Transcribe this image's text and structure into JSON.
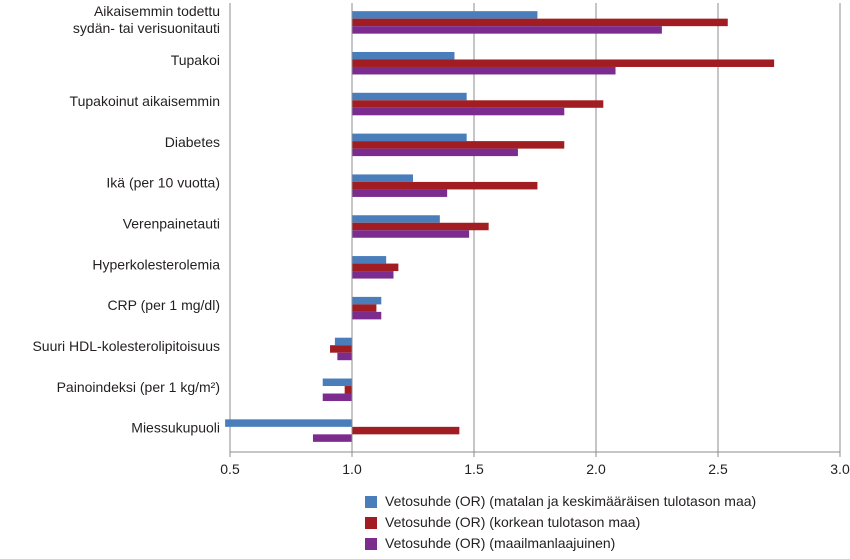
{
  "chart_data": {
    "type": "bar",
    "orientation": "horizontal",
    "title": "",
    "xlabel": "",
    "ylabel": "",
    "xlim": [
      0.5,
      3.0
    ],
    "reference_line": 1.0,
    "grid": "vertical",
    "legend_position": "bottom",
    "xticks": [
      "0.5",
      "1.0",
      "1.5",
      "2.0",
      "2.5",
      "3.0"
    ],
    "categories": [
      [
        "Aikaisemmin todettu",
        "sydän- tai verisuonitauti"
      ],
      [
        "Tupakoi"
      ],
      [
        "Tupakoinut aikaisemmin"
      ],
      [
        "Diabetes"
      ],
      [
        "Ikä (per 10 vuotta)"
      ],
      [
        "Verenpainetauti"
      ],
      [
        "Hyperkolesterolemia"
      ],
      [
        "CRP (per 1 mg/dl)"
      ],
      [
        "Suuri HDL-kolesterolipitoisuus"
      ],
      [
        "Painoindeksi (per 1 kg/m²)"
      ],
      [
        "Miessukupuoli"
      ]
    ],
    "series": [
      {
        "name": "Vetosuhde (OR) (matalan ja keskimääräisen tulotason maa)",
        "color": "#4a7ebb",
        "values": [
          1.76,
          1.42,
          1.47,
          1.47,
          1.25,
          1.36,
          1.14,
          1.12,
          0.93,
          0.88,
          0.48
        ]
      },
      {
        "name": "Vetosuhde (OR) (korkean tulotason maa)",
        "color": "#a11d21",
        "values": [
          2.54,
          2.73,
          2.03,
          1.87,
          1.76,
          1.56,
          1.19,
          1.1,
          0.91,
          0.97,
          1.44
        ]
      },
      {
        "name": "Vetosuhde (OR) (maailmanlaajuinen)",
        "color": "#7b2c8e",
        "values": [
          2.27,
          2.08,
          1.87,
          1.68,
          1.39,
          1.48,
          1.17,
          1.12,
          0.94,
          0.88,
          0.84
        ]
      }
    ]
  }
}
